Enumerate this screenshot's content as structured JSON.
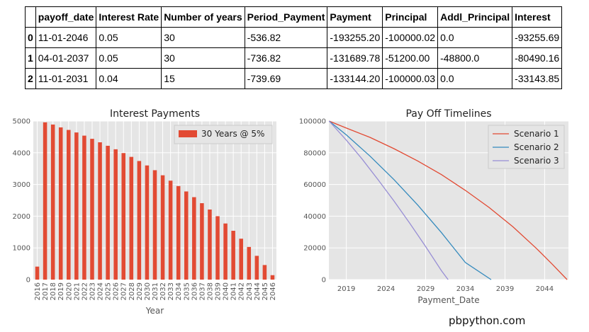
{
  "table": {
    "headers": [
      "",
      "payoff_date",
      "Interest Rate",
      "Number of years",
      "Period_Payment",
      "Payment",
      "Principal",
      "Addl_Principal",
      "Interest"
    ],
    "rows": [
      [
        "0",
        "11-01-2046",
        "0.05",
        "30",
        "-536.82",
        "-193255.20",
        "-100000.02",
        "0.0",
        "-93255.69"
      ],
      [
        "1",
        "04-01-2037",
        "0.05",
        "30",
        "-736.82",
        "-131689.78",
        "-51200.00",
        "-48800.0",
        "-80490.16"
      ],
      [
        "2",
        "11-01-2031",
        "0.04",
        "15",
        "-739.69",
        "-133144.20",
        "-100000.03",
        "0.0",
        "-33143.85"
      ]
    ]
  },
  "chart_data": [
    {
      "type": "bar",
      "title": "Interest Payments",
      "xlabel": "Year",
      "ylabel": "",
      "ylim": [
        0,
        5000
      ],
      "yticks": [
        "0",
        "1000",
        "2000",
        "3000",
        "4000",
        "5000"
      ],
      "categories": [
        "2016",
        "2017",
        "2018",
        "2019",
        "2020",
        "2021",
        "2022",
        "2023",
        "2024",
        "2025",
        "2026",
        "2027",
        "2028",
        "2029",
        "2030",
        "2031",
        "2032",
        "2033",
        "2034",
        "2035",
        "2036",
        "2037",
        "2038",
        "2039",
        "2040",
        "2041",
        "2042",
        "2043",
        "2044",
        "2045",
        "2046"
      ],
      "series": [
        {
          "name": "30 Years @ 5%",
          "color": "#e24a33",
          "values": [
            410,
            4960,
            4890,
            4800,
            4720,
            4640,
            4540,
            4440,
            4330,
            4220,
            4110,
            3990,
            3870,
            3740,
            3600,
            3450,
            3290,
            3120,
            2950,
            2780,
            2600,
            2410,
            2210,
            2000,
            1770,
            1540,
            1290,
            1030,
            750,
            460,
            140
          ]
        }
      ],
      "legend_position": "top-right",
      "grid": true
    },
    {
      "type": "line",
      "title": "Pay Off Timelines",
      "xlabel": "Payment_Date",
      "ylabel": "",
      "xlim": [
        2016.8,
        2047
      ],
      "ylim": [
        0,
        100000
      ],
      "xticks": [
        "2019",
        "2024",
        "2029",
        "2034",
        "2039",
        "2044"
      ],
      "yticks": [
        "0",
        "20000",
        "40000",
        "60000",
        "80000",
        "100000"
      ],
      "series": [
        {
          "name": "Scenario 1",
          "color": "#e24a33",
          "x": [
            2016.83,
            2019,
            2022,
            2025,
            2028,
            2031,
            2034,
            2037,
            2040,
            2043,
            2045,
            2046.83
          ],
          "y": [
            100000,
            95600,
            89700,
            82600,
            74800,
            66200,
            56300,
            45500,
            33300,
            19500,
            9500,
            0
          ]
        },
        {
          "name": "Scenario 2",
          "color": "#348abd",
          "x": [
            2016.83,
            2019,
            2022,
            2025,
            2028,
            2031,
            2034,
            2037.25
          ],
          "y": [
            100000,
            91300,
            77800,
            63100,
            47000,
            29600,
            10800,
            0
          ]
        },
        {
          "name": "Scenario 3",
          "color": "#988ed5",
          "x": [
            2016.83,
            2019,
            2021,
            2023,
            2025,
            2027,
            2029,
            2031,
            2031.83
          ],
          "y": [
            100000,
            88000,
            76000,
            63000,
            49600,
            35500,
            20900,
            5600,
            0
          ]
        }
      ],
      "legend_position": "top-right",
      "grid": true
    }
  ],
  "watermark": "pbpython.com"
}
